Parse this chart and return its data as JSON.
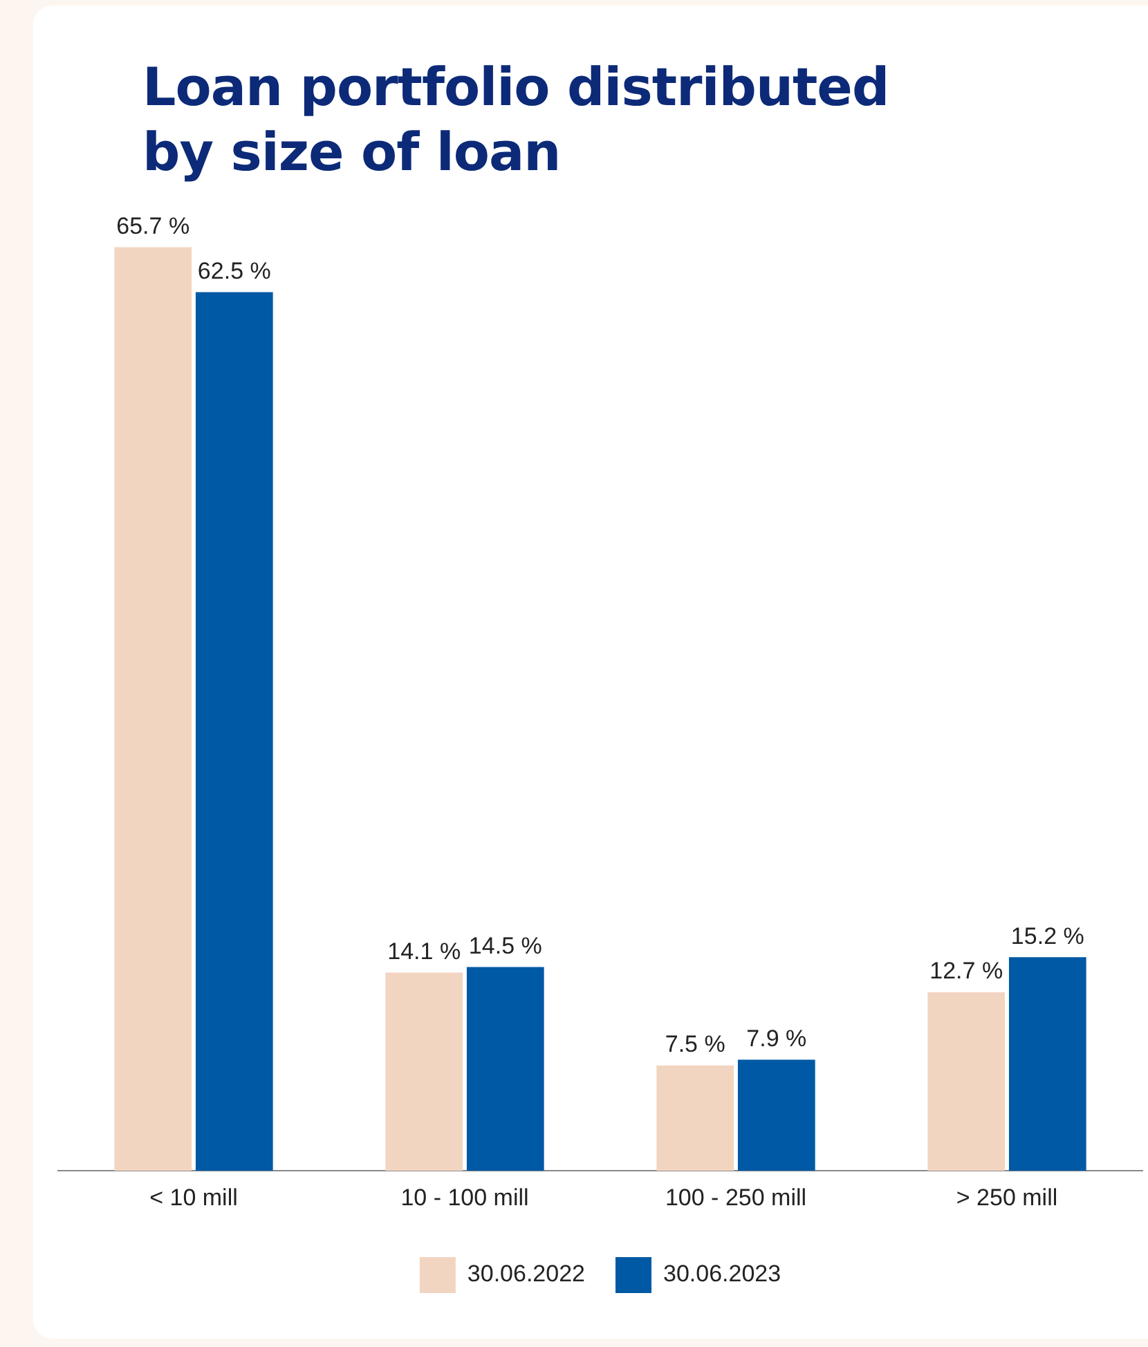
{
  "chart_data": {
    "type": "bar",
    "title": "Loan portfolio distributed by size of loan",
    "categories": [
      "< 10 mill",
      "10 - 100 mill",
      "100 - 250 mill",
      "> 250 mill"
    ],
    "series": [
      {
        "name": "30.06.2022",
        "color": "#f2d5c1",
        "values": [
          65.7,
          14.1,
          7.5,
          12.7
        ],
        "value_labels": [
          "65.7 %",
          "14.1 %",
          "7.5 %",
          "12.7 %"
        ]
      },
      {
        "name": "30.06.2023",
        "color": "#0059a4",
        "values": [
          62.5,
          14.5,
          7.9,
          15.2
        ],
        "value_labels": [
          "62.5 %",
          "14.5 %",
          "7.9 %",
          "15.2 %"
        ]
      }
    ],
    "legend": "bottom",
    "grid": false
  }
}
